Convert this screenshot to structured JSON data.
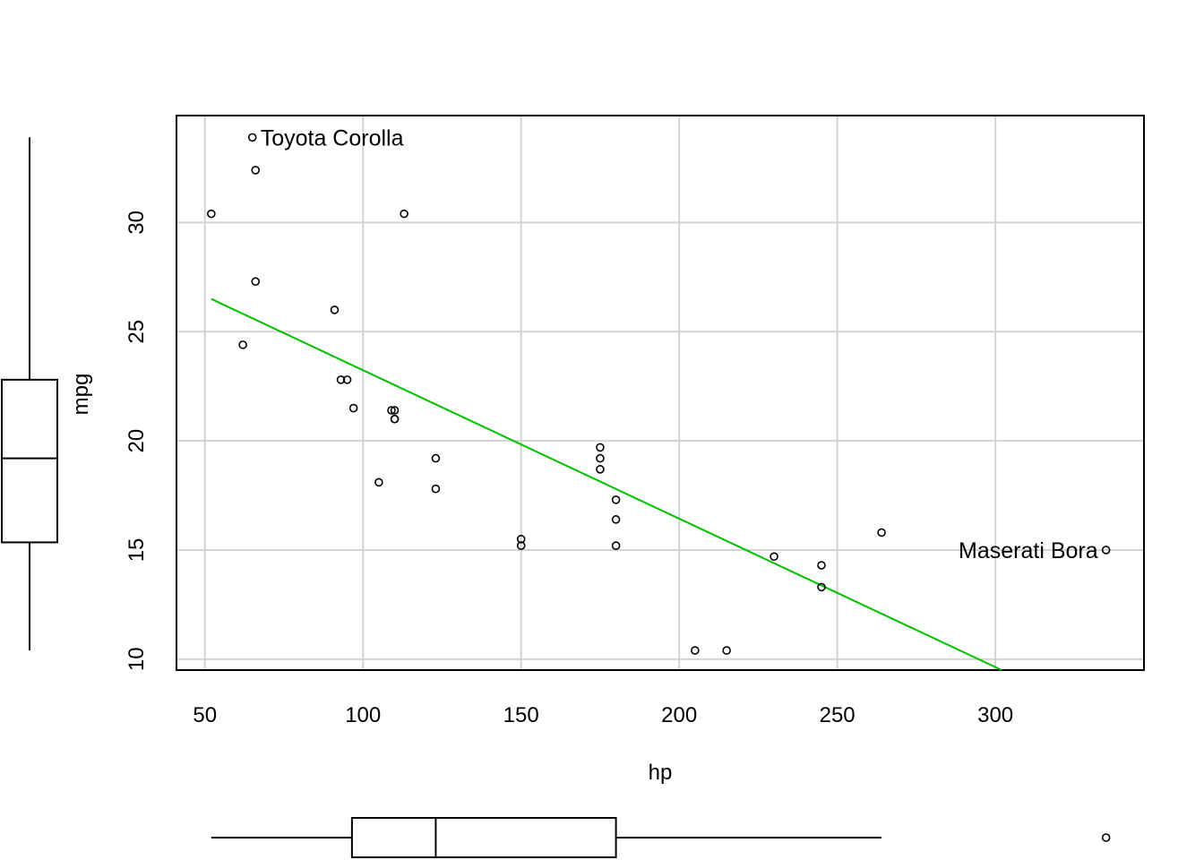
{
  "chart_data": {
    "type": "scatter",
    "xlabel": "hp",
    "ylabel": "mpg",
    "xlim": [
      41,
      347
    ],
    "ylim": [
      9.5,
      34.9
    ],
    "x_ticks": [
      "50",
      "100",
      "150",
      "200",
      "250",
      "300"
    ],
    "y_ticks": [
      "10",
      "15",
      "20",
      "25",
      "30"
    ],
    "x_tick_values": [
      50,
      100,
      150,
      200,
      250,
      300
    ],
    "y_tick_values": [
      10,
      15,
      20,
      25,
      30
    ],
    "grid": true,
    "legend": "none",
    "points": [
      {
        "x": 110,
        "y": 21.0
      },
      {
        "x": 110,
        "y": 21.0
      },
      {
        "x": 93,
        "y": 22.8
      },
      {
        "x": 110,
        "y": 21.4
      },
      {
        "x": 175,
        "y": 18.7
      },
      {
        "x": 105,
        "y": 18.1
      },
      {
        "x": 245,
        "y": 14.3
      },
      {
        "x": 62,
        "y": 24.4
      },
      {
        "x": 95,
        "y": 22.8
      },
      {
        "x": 123,
        "y": 19.2
      },
      {
        "x": 123,
        "y": 17.8
      },
      {
        "x": 180,
        "y": 16.4
      },
      {
        "x": 180,
        "y": 17.3
      },
      {
        "x": 180,
        "y": 15.2
      },
      {
        "x": 205,
        "y": 10.4
      },
      {
        "x": 215,
        "y": 10.4
      },
      {
        "x": 230,
        "y": 14.7
      },
      {
        "x": 66,
        "y": 32.4
      },
      {
        "x": 52,
        "y": 30.4
      },
      {
        "x": 65,
        "y": 33.9
      },
      {
        "x": 97,
        "y": 21.5
      },
      {
        "x": 150,
        "y": 15.5
      },
      {
        "x": 150,
        "y": 15.2
      },
      {
        "x": 245,
        "y": 13.3
      },
      {
        "x": 175,
        "y": 19.2
      },
      {
        "x": 66,
        "y": 27.3
      },
      {
        "x": 91,
        "y": 26.0
      },
      {
        "x": 113,
        "y": 30.4
      },
      {
        "x": 264,
        "y": 15.8
      },
      {
        "x": 175,
        "y": 19.7
      },
      {
        "x": 335,
        "y": 15.0
      },
      {
        "x": 109,
        "y": 21.4
      }
    ],
    "annotations": [
      {
        "text": "Toyota Corolla",
        "x": 65,
        "y": 33.9,
        "side": "right"
      },
      {
        "text": "Maserati Bora",
        "x": 335,
        "y": 15.0,
        "side": "left"
      }
    ],
    "fit_line": {
      "color": "#00c000",
      "x": [
        52,
        302
      ],
      "y": [
        26.5,
        9.5
      ]
    },
    "boxplot_x": {
      "min": 52,
      "q1": 96.5,
      "median": 123,
      "q3": 180,
      "max": 264,
      "outliers": [
        335
      ]
    },
    "boxplot_y": {
      "min": 10.4,
      "q1": 15.35,
      "median": 19.2,
      "q3": 22.8,
      "max": 33.9,
      "outliers": []
    },
    "colors": {
      "points": "#000000",
      "grid": "#d3d3d3",
      "fit": "#00c000"
    }
  }
}
